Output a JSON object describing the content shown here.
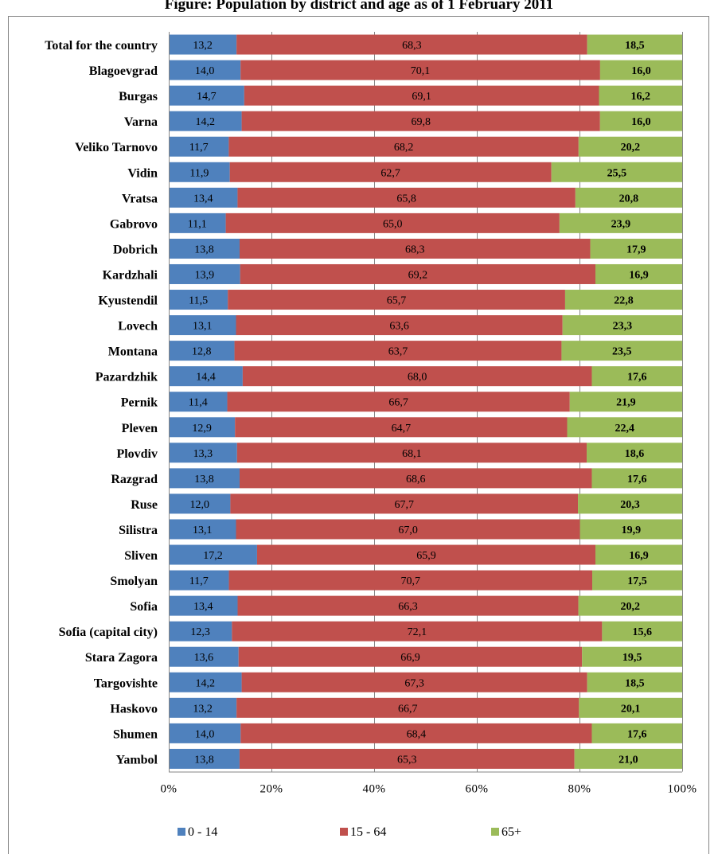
{
  "chart_data": {
    "type": "bar",
    "orientation": "horizontal",
    "stacked": "percent",
    "title": "Figure: Population by district and age as of 1 February 2011",
    "xlabel": "",
    "ylabel": "",
    "xlim": [
      0,
      100
    ],
    "x_ticks": [
      "0%",
      "20%",
      "40%",
      "60%",
      "80%",
      "100%"
    ],
    "grid": true,
    "legend_position": "bottom",
    "categories": [
      "Total for the country",
      "Blagoevgrad",
      "Burgas",
      "Varna",
      "Veliko Tarnovo",
      "Vidin",
      "Vratsa",
      "Gabrovo",
      "Dobrich",
      "Kardzhali",
      "Kyustendil",
      "Lovech",
      "Montana",
      "Pazardzhik",
      "Pernik",
      "Pleven",
      "Plovdiv",
      "Razgrad",
      "Ruse",
      "Silistra",
      "Sliven",
      "Smolyan",
      "Sofia",
      "Sofia (capital city)",
      "Stara Zagora",
      "Targovishte",
      "Haskovo",
      "Shumen",
      "Yambol"
    ],
    "series": [
      {
        "name": "0 - 14",
        "color": "#4f81bd",
        "values": [
          13.2,
          14.0,
          14.7,
          14.2,
          11.7,
          11.9,
          13.4,
          11.1,
          13.8,
          13.9,
          11.5,
          13.1,
          12.8,
          14.4,
          11.4,
          12.9,
          13.3,
          13.8,
          12.0,
          13.1,
          17.2,
          11.7,
          13.4,
          12.3,
          13.6,
          14.2,
          13.2,
          14.0,
          13.8
        ],
        "labels": [
          "13,2",
          "14,0",
          "14,7",
          "14,2",
          "11,7",
          "11,9",
          "13,4",
          "11,1",
          "13,8",
          "13,9",
          "11,5",
          "13,1",
          "12,8",
          "14,4",
          "11,4",
          "12,9",
          "13,3",
          "13,8",
          "12,0",
          "13,1",
          "17,2",
          "11,7",
          "13,4",
          "12,3",
          "13,6",
          "14,2",
          "13,2",
          "14,0",
          "13,8"
        ]
      },
      {
        "name": "15 - 64",
        "color": "#c0504d",
        "values": [
          68.3,
          70.1,
          69.1,
          69.8,
          68.2,
          62.7,
          65.8,
          65.0,
          68.3,
          69.2,
          65.7,
          63.6,
          63.7,
          68.0,
          66.7,
          64.7,
          68.1,
          68.6,
          67.7,
          67.0,
          65.9,
          70.7,
          66.3,
          72.1,
          66.9,
          67.3,
          66.7,
          68.4,
          65.3
        ],
        "labels": [
          "68,3",
          "70,1",
          "69,1",
          "69,8",
          "68,2",
          "62,7",
          "65,8",
          "65,0",
          "68,3",
          "69,2",
          "65,7",
          "63,6",
          "63,7",
          "68,0",
          "66,7",
          "64,7",
          "68,1",
          "68,6",
          "67,7",
          "67,0",
          "65,9",
          "70,7",
          "66,3",
          "72,1",
          "66,9",
          "67,3",
          "66,7",
          "68,4",
          "65,3"
        ]
      },
      {
        "name": "65+",
        "color": "#9bbb59",
        "values": [
          18.5,
          16.0,
          16.2,
          16.0,
          20.2,
          25.5,
          20.8,
          23.9,
          17.9,
          16.9,
          22.8,
          23.3,
          23.5,
          17.6,
          21.9,
          22.4,
          18.6,
          17.6,
          20.3,
          19.9,
          16.9,
          17.5,
          20.2,
          15.6,
          19.5,
          18.5,
          20.1,
          17.6,
          21.0
        ],
        "labels": [
          "18,5",
          "16,0",
          "16,2",
          "16,0",
          "20,2",
          "25,5",
          "20,8",
          "23,9",
          "17,9",
          "16,9",
          "22,8",
          "23,3",
          "23,5",
          "17,6",
          "21,9",
          "22,4",
          "18,6",
          "17,6",
          "20,3",
          "19,9",
          "16,9",
          "17,5",
          "20,2",
          "15,6",
          "19,5",
          "18,5",
          "20,1",
          "17,6",
          "21,0"
        ]
      }
    ]
  }
}
